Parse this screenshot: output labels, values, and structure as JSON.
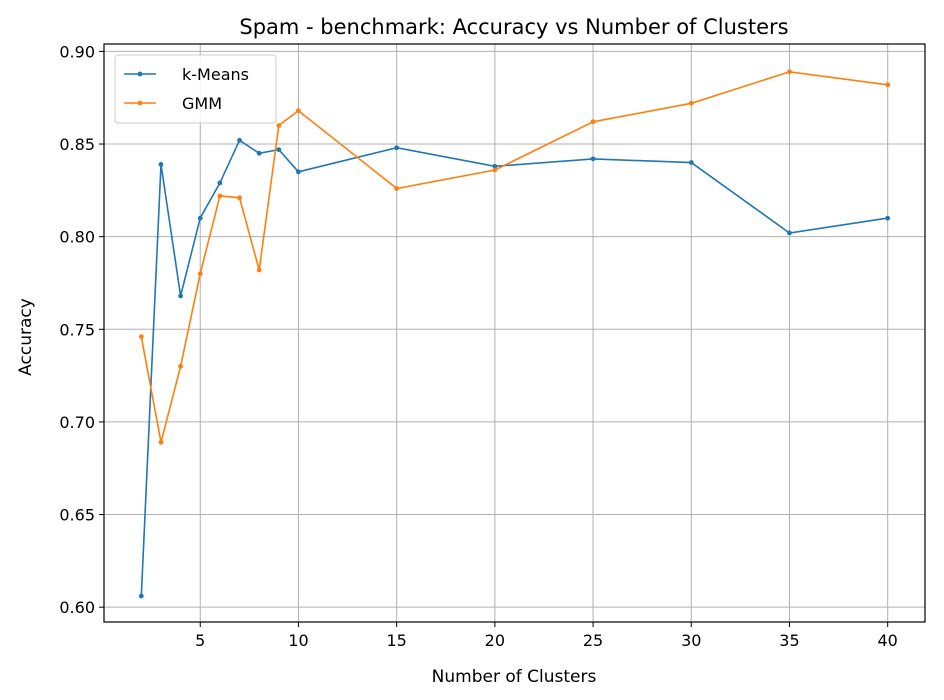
{
  "chart_data": {
    "type": "line",
    "title": "Spam - benchmark: Accuracy vs Number of Clusters",
    "xlabel": "Number of Clusters",
    "ylabel": "Accuracy",
    "xlim": [
      0.1,
      41.9
    ],
    "ylim": [
      0.592,
      0.904
    ],
    "xticks": [
      5,
      10,
      15,
      20,
      25,
      30,
      35,
      40
    ],
    "yticks": [
      0.6,
      0.65,
      0.7,
      0.75,
      0.8,
      0.85,
      0.9
    ],
    "ytick_labels": [
      "0.60",
      "0.65",
      "0.70",
      "0.75",
      "0.80",
      "0.85",
      "0.90"
    ],
    "grid": true,
    "legend_position": "top-left",
    "x": [
      2,
      3,
      4,
      5,
      6,
      7,
      8,
      9,
      10,
      15,
      20,
      25,
      30,
      35,
      40
    ],
    "series": [
      {
        "name": "k-Means",
        "color": "#1f77b4",
        "values": [
          0.606,
          0.839,
          0.768,
          0.81,
          0.829,
          0.852,
          0.845,
          0.847,
          0.835,
          0.848,
          0.838,
          0.842,
          0.84,
          0.802,
          0.81
        ]
      },
      {
        "name": "GMM",
        "color": "#ff7f0e",
        "values": [
          0.746,
          0.689,
          0.73,
          0.78,
          0.822,
          0.821,
          0.782,
          0.86,
          0.868,
          0.826,
          0.836,
          0.862,
          0.872,
          0.889,
          0.882
        ]
      }
    ]
  }
}
